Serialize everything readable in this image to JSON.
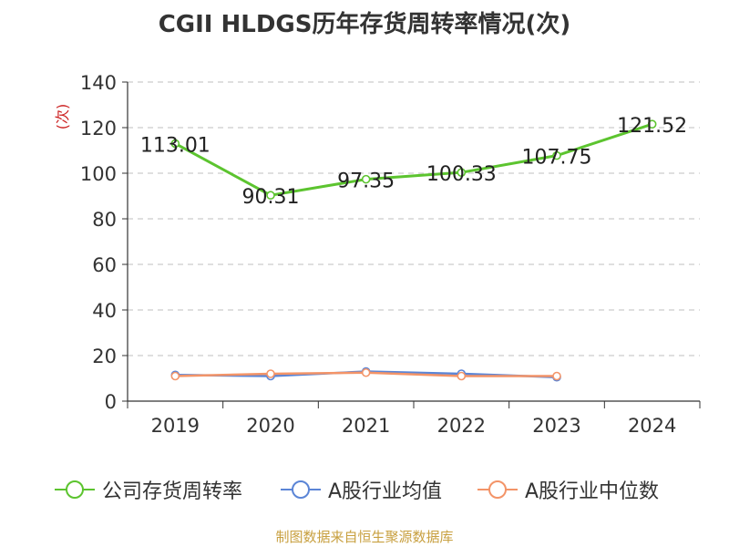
{
  "title": "CGII HLDGS历年存货周转率情况(次)",
  "source": "制图数据来自恒生聚源数据库",
  "chart_data": {
    "type": "line",
    "title": "CGII HLDGS历年存货周转率情况(次)",
    "ylabel": "(次)",
    "xlabel": "",
    "categories": [
      "2019",
      "2020",
      "2021",
      "2022",
      "2023",
      "2024"
    ],
    "ylim": [
      0,
      140
    ],
    "yticks": [
      0,
      20,
      40,
      60,
      80,
      100,
      120,
      140
    ],
    "grid": "horizontal-dashed",
    "legend_position": "bottom",
    "series": [
      {
        "name": "公司存货周转率",
        "color": "#5cc42f",
        "values": [
          113.01,
          90.31,
          97.35,
          100.33,
          107.75,
          121.52
        ],
        "labels": [
          "113.01",
          "90.31",
          "97.35",
          "100.33",
          "107.75",
          "121.52"
        ]
      },
      {
        "name": "A股行业均值",
        "color": "#5b85d6",
        "values": [
          11.5,
          11,
          13,
          12,
          10.5,
          null
        ]
      },
      {
        "name": "A股行业中位数",
        "color": "#f39468",
        "values": [
          11,
          12,
          12.5,
          11,
          11,
          null
        ]
      }
    ]
  }
}
